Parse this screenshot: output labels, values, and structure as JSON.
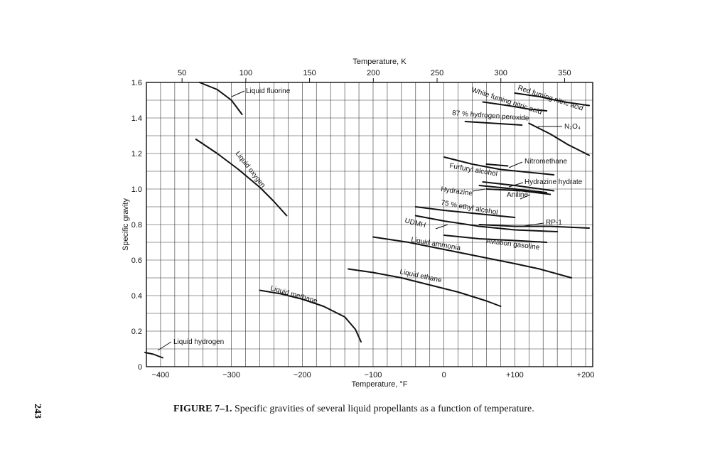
{
  "page": {
    "number": "243"
  },
  "caption": {
    "figure_label": "FIGURE 7–1.",
    "text": " Specific gravities of several liquid propellants as a function of temperature."
  },
  "chart_data": {
    "type": "line",
    "title": "",
    "xlabel": "Temperature, °F",
    "x2label": "Temperature, K",
    "ylabel": "Specific gravity",
    "xlim": [
      -420,
      210
    ],
    "ylim": [
      0,
      1.6
    ],
    "x_ticks": [
      -400,
      -300,
      -200,
      -100,
      0,
      100,
      200
    ],
    "x_tick_labels": [
      "−400",
      "−300",
      "−200",
      "−100",
      "0",
      "+100",
      "+200"
    ],
    "x2_ticks": [
      50,
      100,
      150,
      200,
      250,
      300,
      350
    ],
    "y_ticks": [
      0,
      0.2,
      0.4,
      0.6,
      0.8,
      1.0,
      1.2,
      1.4,
      1.6
    ],
    "y_tick_labels": [
      "0",
      "0.2",
      "0.4",
      "0.6",
      "0.8",
      "1.0",
      "1.2",
      "1.4",
      "1.6"
    ],
    "grid": true,
    "series": [
      {
        "name": "Liquid fluorine",
        "x": [
          -345,
          -320,
          -300,
          -285
        ],
        "y": [
          1.6,
          1.56,
          1.5,
          1.42
        ]
      },
      {
        "name": "Liquid oxygen",
        "x": [
          -350,
          -320,
          -290,
          -260,
          -240,
          -222
        ],
        "y": [
          1.28,
          1.2,
          1.11,
          1.01,
          0.93,
          0.85
        ]
      },
      {
        "name": "Liquid hydrogen",
        "x": [
          -422,
          -410,
          -397
        ],
        "y": [
          0.08,
          0.07,
          0.05
        ]
      },
      {
        "name": "Liquid methane",
        "x": [
          -260,
          -230,
          -200,
          -170,
          -140,
          -125,
          -117
        ],
        "y": [
          0.43,
          0.41,
          0.38,
          0.34,
          0.28,
          0.21,
          0.14
        ]
      },
      {
        "name": "Liquid ethane",
        "x": [
          -135,
          -100,
          -60,
          -20,
          20,
          60,
          80
        ],
        "y": [
          0.55,
          0.53,
          0.5,
          0.46,
          0.42,
          0.37,
          0.34
        ]
      },
      {
        "name": "Liquid ammonia",
        "x": [
          -100,
          -50,
          0,
          50,
          100,
          135,
          180
        ],
        "y": [
          0.73,
          0.7,
          0.66,
          0.62,
          0.58,
          0.55,
          0.5
        ]
      },
      {
        "name": "Red fuming nitric acid",
        "x": [
          100,
          135,
          170,
          205
        ],
        "y": [
          1.54,
          1.52,
          1.49,
          1.47
        ]
      },
      {
        "name": "White fuming nitric acid",
        "x": [
          55,
          90,
          120,
          145
        ],
        "y": [
          1.49,
          1.47,
          1.45,
          1.44
        ]
      },
      {
        "name": "87% hydrogen peroxide",
        "x": [
          30,
          70,
          110
        ],
        "y": [
          1.38,
          1.37,
          1.36
        ]
      },
      {
        "name": "N2O4",
        "x": [
          120,
          150,
          175,
          205
        ],
        "y": [
          1.37,
          1.31,
          1.25,
          1.19
        ]
      },
      {
        "name": "Nitromethane",
        "x": [
          60,
          90
        ],
        "y": [
          1.14,
          1.13
        ]
      },
      {
        "name": "Furfuryl alcohol",
        "x": [
          0,
          40,
          80,
          155
        ],
        "y": [
          1.18,
          1.14,
          1.11,
          1.08
        ]
      },
      {
        "name": "Hydrazine hydrate",
        "x": [
          55,
          100,
          155
        ],
        "y": [
          1.04,
          1.02,
          0.99
        ]
      },
      {
        "name": "Hydrazine",
        "x": [
          50,
          100,
          145
        ],
        "y": [
          1.02,
          1.0,
          0.98
        ]
      },
      {
        "name": "Aniline",
        "x": [
          60,
          110,
          150
        ],
        "y": [
          1.0,
          0.99,
          0.97
        ]
      },
      {
        "name": "75% ethyl alcohol",
        "x": [
          -40,
          0,
          50,
          100
        ],
        "y": [
          0.9,
          0.88,
          0.86,
          0.84
        ]
      },
      {
        "name": "RP-1",
        "x": [
          50,
          100,
          150,
          205
        ],
        "y": [
          0.8,
          0.79,
          0.79,
          0.78
        ]
      },
      {
        "name": "UDMH",
        "x": [
          -40,
          0,
          50,
          100,
          160
        ],
        "y": [
          0.85,
          0.82,
          0.79,
          0.77,
          0.76
        ]
      },
      {
        "name": "Aviation gasoline",
        "x": [
          0,
          50,
          100,
          145
        ],
        "y": [
          0.74,
          0.72,
          0.71,
          0.7
        ]
      }
    ],
    "annotations": [
      {
        "text": "Liquid fluorine"
      },
      {
        "text": "Liquid oxygen"
      },
      {
        "text": "Liquid hydrogen"
      },
      {
        "text": "Liquid methane"
      },
      {
        "text": "Liquid ethane"
      },
      {
        "text": "Liquid ammonia"
      },
      {
        "text": "Red fuming nitric acid"
      },
      {
        "text": "White fuming nitric acid"
      },
      {
        "text": "87 % hydrogen peroxide"
      },
      {
        "text": "N₂O₄"
      },
      {
        "text": "Nitromethane"
      },
      {
        "text": "Furfuryl alcohol"
      },
      {
        "text": "Hydrazine hydrate"
      },
      {
        "text": "Hydrazine"
      },
      {
        "text": "Aniline"
      },
      {
        "text": "75 % ethyl alcohol"
      },
      {
        "text": "RP-1"
      },
      {
        "text": "UDMH"
      },
      {
        "text": "Aviation gasoline"
      }
    ]
  }
}
